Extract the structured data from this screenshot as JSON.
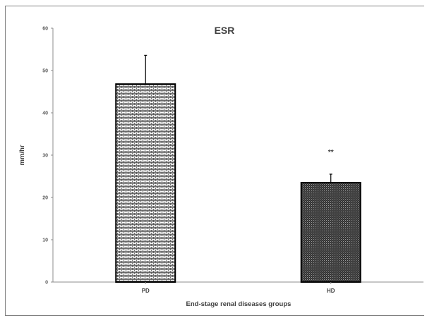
{
  "chart_data": {
    "type": "bar",
    "title": "ESR",
    "xlabel": "End-stage renal diseases groups",
    "ylabel": "mm/hr",
    "categories": [
      "PD",
      "HD"
    ],
    "values": [
      46.8,
      23.5
    ],
    "error_upper": [
      6.8,
      2.0
    ],
    "annotations": [
      "",
      "**"
    ],
    "ylim": [
      0,
      60
    ],
    "yticks": [
      0,
      10,
      20,
      30,
      40,
      50,
      60
    ],
    "grid": false,
    "legend": "none",
    "bar_styles": [
      {
        "pattern": "bricks",
        "fill": "#ffffff",
        "line": "#000000"
      },
      {
        "pattern": "dots",
        "fill": "#ffffff",
        "line": "#000000"
      }
    ]
  }
}
